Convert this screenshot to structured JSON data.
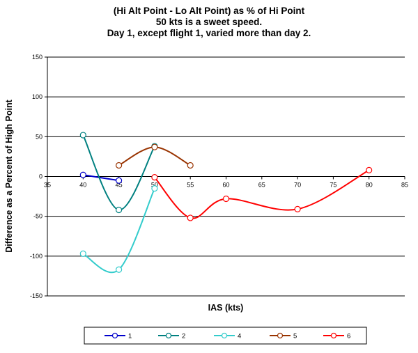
{
  "chart_data": {
    "type": "line",
    "title": [
      "(Hi Alt Point - Lo Alt Point) as % of Hi Point",
      "50 kts is a sweet speed.",
      "Day 1, except flight 1, varied more than day 2."
    ],
    "xlabel": "IAS (kts)",
    "ylabel": "Difference as a Percent of High Point",
    "xlim": [
      35,
      85
    ],
    "ylim": [
      -150,
      150
    ],
    "xticks": [
      "35",
      "40",
      "45",
      "50",
      "55",
      "60",
      "65",
      "70",
      "75",
      "80",
      "85"
    ],
    "yticks": [
      "150",
      "100",
      "50",
      "0",
      "-50",
      "-100",
      "-150"
    ],
    "grid": true,
    "legend_position": "bottom",
    "series": [
      {
        "name": "1",
        "color": "#0000cc",
        "x": [
          40,
          45
        ],
        "y": [
          2,
          -5
        ]
      },
      {
        "name": "2",
        "color": "#008080",
        "x": [
          40,
          45,
          50
        ],
        "y": [
          52,
          -42,
          38
        ]
      },
      {
        "name": "4",
        "color": "#33cccc",
        "x": [
          40,
          45,
          50
        ],
        "y": [
          -97,
          -117,
          -15
        ]
      },
      {
        "name": "5",
        "color": "#993300",
        "x": [
          45,
          50,
          55
        ],
        "y": [
          14,
          37,
          14
        ]
      },
      {
        "name": "6",
        "color": "#ff0000",
        "x": [
          50,
          55,
          60,
          70,
          80
        ],
        "y": [
          -1,
          -52,
          -28,
          -41,
          8
        ]
      }
    ]
  }
}
